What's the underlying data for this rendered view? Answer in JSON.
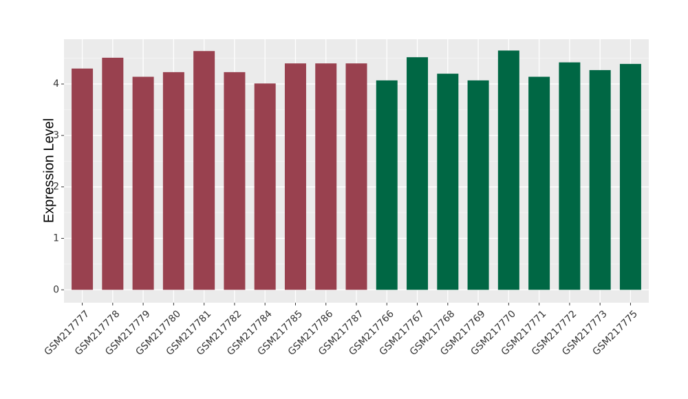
{
  "chart_data": {
    "type": "bar",
    "title": "",
    "xlabel": "",
    "ylabel": "Expression Level",
    "ylim": [
      -0.25,
      4.87
    ],
    "yticks": [
      0,
      1,
      2,
      3,
      4
    ],
    "grid": true,
    "background": "#EBEBEB",
    "categories": [
      "GSM217777",
      "GSM217778",
      "GSM217779",
      "GSM217780",
      "GSM217781",
      "GSM217782",
      "GSM217784",
      "GSM217785",
      "GSM217786",
      "GSM217787",
      "GSM217766",
      "GSM217767",
      "GSM217768",
      "GSM217769",
      "GSM217770",
      "GSM217771",
      "GSM217772",
      "GSM217773",
      "GSM217775"
    ],
    "values": [
      4.3,
      4.51,
      4.14,
      4.23,
      4.64,
      4.23,
      4.01,
      4.4,
      4.4,
      4.4,
      4.07,
      4.52,
      4.2,
      4.07,
      4.65,
      4.14,
      4.42,
      4.27,
      4.39
    ],
    "colors": [
      "#99414F",
      "#99414F",
      "#99414F",
      "#99414F",
      "#99414F",
      "#99414F",
      "#99414F",
      "#99414F",
      "#99414F",
      "#99414F",
      "#006744",
      "#006744",
      "#006744",
      "#006744",
      "#006744",
      "#006744",
      "#006744",
      "#006744",
      "#006744"
    ]
  }
}
